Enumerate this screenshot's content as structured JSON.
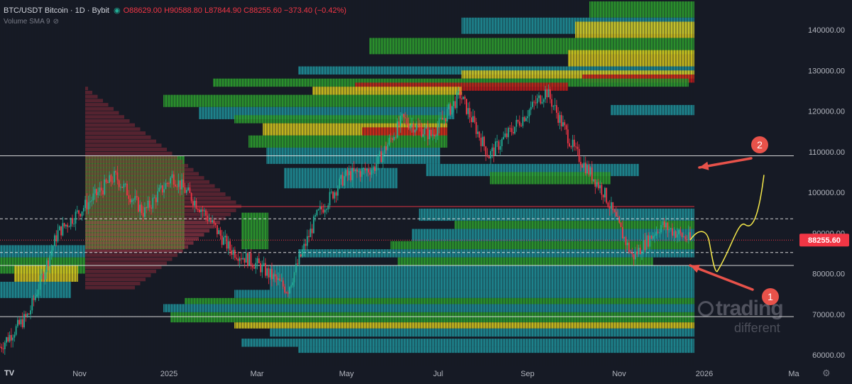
{
  "header": {
    "symbol": "BTC/USDT Bitcoin · 1D · Bybit",
    "open": "O88629.00",
    "high": "H90588.80",
    "low": "L87844.90",
    "close": "C88255.60",
    "change": "−373.40 (−0.42%)"
  },
  "indicator": {
    "label": "Volume SMA 9"
  },
  "price_axis": {
    "ticks": [
      "140000.00",
      "130000.00",
      "120000.00",
      "110000.00",
      "100000.00",
      "90000.00",
      "80000.00",
      "70000.00",
      "60000.00"
    ],
    "last_price": "88255.60",
    "last_price_color": "#f23645"
  },
  "time_axis": {
    "ticks": [
      "Nov",
      "2025",
      "Mar",
      "May",
      "Jul",
      "Sep",
      "Nov",
      "2026",
      "Ma"
    ]
  },
  "annotations": {
    "marker_1": "1",
    "marker_2": "2",
    "arrow_color": "#e8524a",
    "projection_color": "#f5e84a"
  },
  "watermark": {
    "line1": "trading",
    "line2": "different"
  },
  "colors": {
    "background": "#161a25",
    "up_candle": "#22ab94",
    "down_candle": "#f23645",
    "heatmap_low": "#1f8f99",
    "heatmap_mid": "#2e9e2e",
    "heatmap_high": "#d8c81e",
    "heatmap_max": "#c41a1a"
  },
  "chart_data": {
    "type": "candlestick",
    "title": "BTC/USDT Bitcoin · 1D · Bybit",
    "x_ticks": [
      "Nov",
      "2025",
      "Mar",
      "May",
      "Jul",
      "Sep",
      "Nov",
      "2026",
      "Ma"
    ],
    "y_ticks": [
      140000,
      130000,
      120000,
      110000,
      100000,
      90000,
      80000,
      70000,
      60000
    ],
    "y_range": [
      58000,
      148000
    ],
    "horizontal_levels": [
      {
        "price": 109000,
        "style": "solid",
        "color": "white"
      },
      {
        "price": 96500,
        "style": "solid",
        "color": "red"
      },
      {
        "price": 93500,
        "style": "dashed",
        "color": "white"
      },
      {
        "price": 85200,
        "style": "dashed",
        "color": "white"
      },
      {
        "price": 82000,
        "style": "solid",
        "color": "white"
      },
      {
        "price": 69400,
        "style": "solid",
        "color": "white"
      }
    ],
    "price_path": [
      {
        "date": "Oct",
        "price": 62000
      },
      {
        "date": "Nov",
        "price": 70000
      },
      {
        "date": "Nov",
        "price": 90000
      },
      {
        "date": "Dec",
        "price": 97000
      },
      {
        "date": "Dec",
        "price": 104000
      },
      {
        "date": "Jan",
        "price": 95000
      },
      {
        "date": "Jan",
        "price": 104000
      },
      {
        "date": "Feb",
        "price": 96000
      },
      {
        "date": "Mar",
        "price": 86000
      },
      {
        "date": "Mar",
        "price": 82000
      },
      {
        "date": "Apr",
        "price": 76000
      },
      {
        "date": "Apr",
        "price": 94000
      },
      {
        "date": "May",
        "price": 104000
      },
      {
        "date": "Jun",
        "price": 106000
      },
      {
        "date": "Jul",
        "price": 118000
      },
      {
        "date": "Aug",
        "price": 114000
      },
      {
        "date": "Aug",
        "price": 124000
      },
      {
        "date": "Sep",
        "price": 109000
      },
      {
        "date": "Sep",
        "price": 117000
      },
      {
        "date": "Oct",
        "price": 125000
      },
      {
        "date": "Oct",
        "price": 110000
      },
      {
        "date": "Nov",
        "price": 100000
      },
      {
        "date": "Nov",
        "price": 84000
      },
      {
        "date": "Dec",
        "price": 92000
      },
      {
        "date": "Dec",
        "price": 88255.6
      }
    ],
    "projection": [
      {
        "price": 88255.6
      },
      {
        "price": 90000
      },
      {
        "price": 80500
      },
      {
        "price": 92000
      },
      {
        "price": 104000
      }
    ]
  }
}
